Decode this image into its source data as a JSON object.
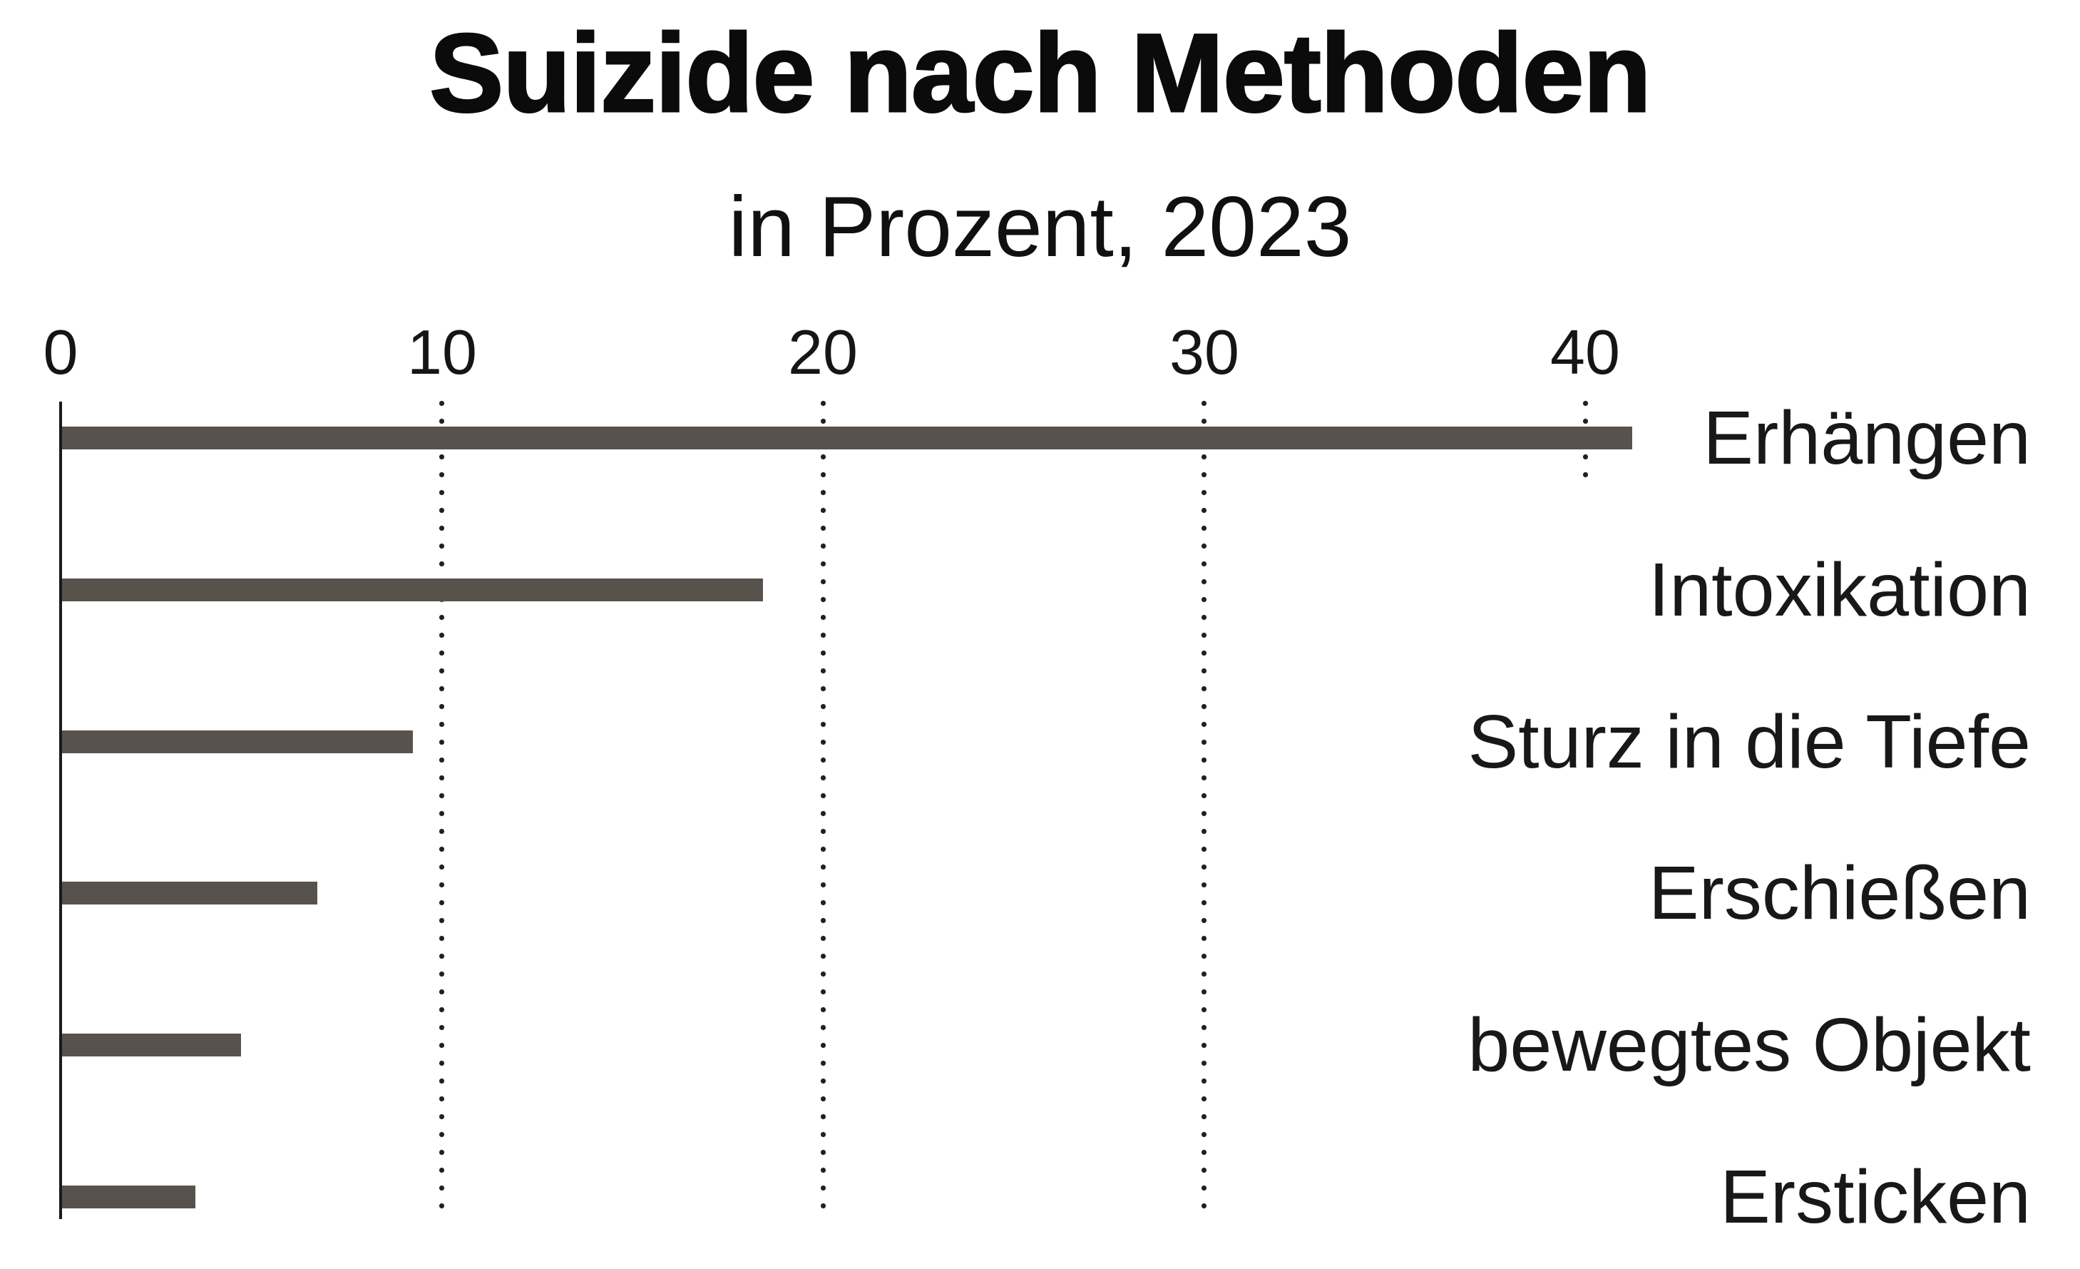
{
  "title": "Suizide nach Methoden",
  "subtitle": "in Prozent, 2023",
  "colors": {
    "background": "#ffffff",
    "bar": "#57524c",
    "axis": "#1a1a1a",
    "grid_dots": "#231f1c",
    "text": "#0b0b0b"
  },
  "chart_data": {
    "type": "bar",
    "orientation": "horizontal",
    "title": "Suizide nach Methoden",
    "subtitle": "in Prozent, 2023",
    "unit": "percent",
    "categories": [
      "Erhängen",
      "Intoxikation",
      "Sturz in die Tiefe",
      "Erschießen",
      "bewegtes Objekt",
      "Ersticken"
    ],
    "values": [
      41.2,
      18.4,
      9.2,
      6.7,
      4.7,
      3.5
    ],
    "x_ticks": [
      0,
      10,
      20,
      30,
      40
    ],
    "xlim": [
      0,
      45
    ],
    "xlabel": "",
    "ylabel": "",
    "grid": "dotted vertical lines at x ticks, bars drawn above grid",
    "legend": false,
    "bar_color": "#57524c"
  }
}
